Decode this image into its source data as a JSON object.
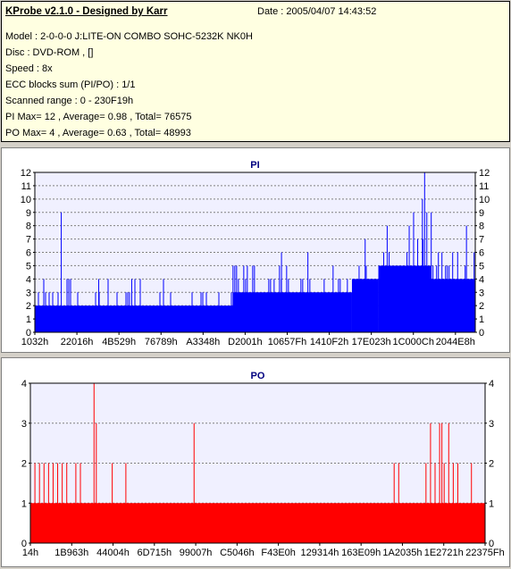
{
  "header": {
    "title": "KProbe v2.1.0 - Designed by Karr",
    "date": "Date : 2005/04/07 14:43:52",
    "lines": [
      "Model : 2-0-0-0 J:LITE-ON COMBO SOHC-5232K NK0H",
      "Disc : DVD-ROM ,  []",
      "Speed : 8x",
      "ECC blocks sum (PI/PO) : 1/1",
      "Scanned range : 0 - 230F19h",
      "PI Max= 12 , Average= 0.98 , Total= 76575",
      "PO Max= 4 , Average= 0.63 , Total= 48993"
    ]
  },
  "chart_data": [
    {
      "type": "bar",
      "title": "PI",
      "color": "#0000ff",
      "ylim": [
        0,
        12
      ],
      "yticks": [
        0,
        1,
        2,
        3,
        4,
        5,
        6,
        7,
        8,
        9,
        10,
        11,
        12
      ],
      "xtick_labels": [
        "1032h",
        "22016h",
        "4B529h",
        "76789h",
        "A3348h",
        "D2001h",
        "10657Fh",
        "1410F2h",
        "17E023h",
        "1C000Ch",
        "2044E8h"
      ],
      "baseline_profile": [
        {
          "from": 0.0,
          "to": 0.45,
          "value": 2
        },
        {
          "from": 0.45,
          "to": 0.72,
          "value": 3
        },
        {
          "from": 0.72,
          "to": 0.78,
          "value": 4
        },
        {
          "from": 0.78,
          "to": 0.9,
          "value": 5
        },
        {
          "from": 0.9,
          "to": 1.0,
          "value": 4
        }
      ],
      "spikes": [
        {
          "x": 0.06,
          "value": 9
        },
        {
          "x": 0.145,
          "value": 4
        },
        {
          "x": 0.22,
          "value": 4
        },
        {
          "x": 0.45,
          "value": 5
        },
        {
          "x": 0.56,
          "value": 6
        },
        {
          "x": 0.62,
          "value": 6
        },
        {
          "x": 0.75,
          "value": 7
        },
        {
          "x": 0.8,
          "value": 8
        },
        {
          "x": 0.85,
          "value": 8
        },
        {
          "x": 0.86,
          "value": 9
        },
        {
          "x": 0.88,
          "value": 10
        },
        {
          "x": 0.885,
          "value": 12
        },
        {
          "x": 0.89,
          "value": 9
        },
        {
          "x": 0.9,
          "value": 9
        },
        {
          "x": 0.96,
          "value": 6
        },
        {
          "x": 0.98,
          "value": 8
        }
      ]
    },
    {
      "type": "bar",
      "title": "PO",
      "color": "#ff0000",
      "ylim": [
        0,
        4
      ],
      "yticks": [
        0,
        1,
        2,
        3,
        4
      ],
      "xtick_labels": [
        "14h",
        "1B963h",
        "44004h",
        "6D715h",
        "99007h",
        "C5046h",
        "F43E0h",
        "129314h",
        "163E09h",
        "1A2035h",
        "1E2721h",
        "22375Fh"
      ],
      "baseline_value": 1,
      "spikes": [
        {
          "x": 0.01,
          "value": 2
        },
        {
          "x": 0.02,
          "value": 2
        },
        {
          "x": 0.03,
          "value": 2
        },
        {
          "x": 0.04,
          "value": 2
        },
        {
          "x": 0.05,
          "value": 2
        },
        {
          "x": 0.06,
          "value": 2
        },
        {
          "x": 0.07,
          "value": 2
        },
        {
          "x": 0.08,
          "value": 2
        },
        {
          "x": 0.1,
          "value": 2
        },
        {
          "x": 0.11,
          "value": 2
        },
        {
          "x": 0.14,
          "value": 4
        },
        {
          "x": 0.145,
          "value": 3
        },
        {
          "x": 0.18,
          "value": 2
        },
        {
          "x": 0.21,
          "value": 2
        },
        {
          "x": 0.36,
          "value": 3
        },
        {
          "x": 0.8,
          "value": 2
        },
        {
          "x": 0.81,
          "value": 2
        },
        {
          "x": 0.87,
          "value": 2
        },
        {
          "x": 0.88,
          "value": 3
        },
        {
          "x": 0.89,
          "value": 2
        },
        {
          "x": 0.9,
          "value": 3
        },
        {
          "x": 0.905,
          "value": 3
        },
        {
          "x": 0.91,
          "value": 2
        },
        {
          "x": 0.92,
          "value": 3
        },
        {
          "x": 0.93,
          "value": 2
        },
        {
          "x": 0.94,
          "value": 2
        },
        {
          "x": 0.97,
          "value": 2
        }
      ]
    }
  ]
}
